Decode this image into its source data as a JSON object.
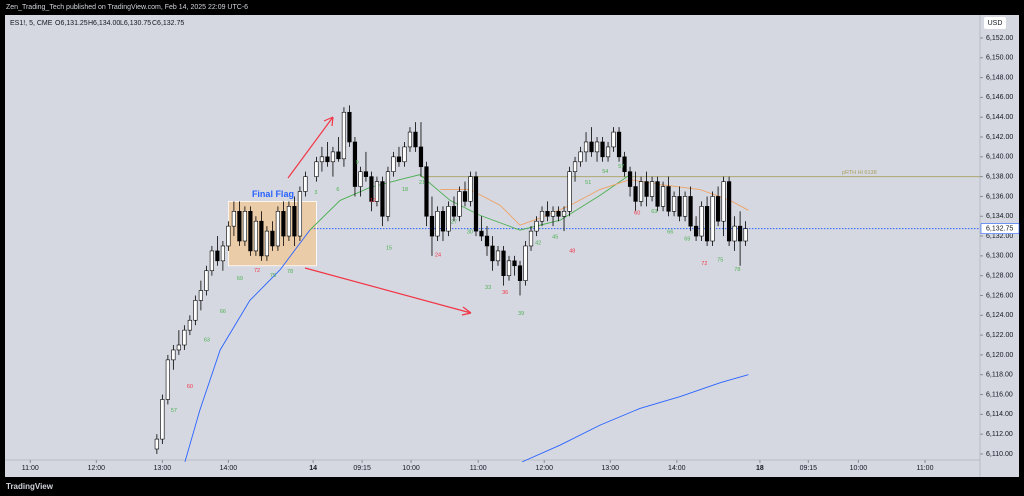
{
  "header": {
    "published": "Zen_Trading_Tech published on TradingView.com, Feb 14, 2025 22:09 UTC-6",
    "brand": "TradingView"
  },
  "chart_data": {
    "type": "candlestick",
    "symbol": "ES1!, 5, CME",
    "quote": [
      "O6,131.25",
      "H6,134.00",
      "L6,130.75",
      "C6,132.75"
    ],
    "currency": "USD",
    "x": [
      0,
      1,
      2,
      3,
      4,
      5,
      6,
      7,
      8,
      9,
      10,
      11,
      12,
      13,
      14,
      15,
      16,
      17,
      18,
      19,
      20,
      21,
      22,
      23,
      24,
      25,
      26,
      27,
      29,
      30,
      31,
      32,
      33,
      34,
      35,
      36,
      37,
      38,
      39,
      40,
      41,
      42,
      43,
      44,
      45,
      46,
      47,
      48,
      49,
      50,
      51,
      52,
      53,
      54,
      55,
      56,
      57,
      58,
      59,
      60,
      61,
      62,
      63,
      64,
      65,
      66,
      67,
      68,
      69,
      70,
      71,
      72,
      73,
      74,
      75,
      76,
      77,
      78,
      79,
      80,
      81,
      82,
      83,
      84,
      85,
      86,
      87,
      88,
      89,
      90,
      91,
      92,
      93,
      94,
      95,
      96,
      97,
      98,
      99,
      100,
      101,
      102,
      103,
      104,
      105,
      106,
      107
    ],
    "open": [
      6110.5,
      6111.5,
      6115.5,
      6119.5,
      6120.5,
      6121,
      6122.5,
      6123.5,
      6125.5,
      6126.5,
      6128.5,
      6130.5,
      6129.5,
      6131,
      6133,
      6134.5,
      6131.5,
      6134.5,
      6130.5,
      6133.5,
      6130,
      6132.5,
      6131,
      6134.5,
      6132,
      6135,
      6132,
      6136.5,
      6138,
      6139.5,
      6140,
      6139.5,
      6140.5,
      6139.8,
      6144.5,
      6141.5,
      6137,
      6138.5,
      6138,
      6135.5,
      6137.5,
      6134,
      6138.5,
      6140,
      6139.5,
      6141,
      6142.5,
      6141,
      6139,
      6134,
      6132,
      6134.5,
      6132.5,
      6135,
      6134,
      6136.5,
      6135.5,
      6138,
      6132.5,
      6132,
      6131,
      6129.5,
      6130.5,
      6128,
      6129.5,
      6129,
      6127.5,
      6131,
      6132.5,
      6133.5,
      6134.5,
      6134,
      6134.5,
      6134,
      6134.5,
      6138.5,
      6139.5,
      6140.5,
      6141.5,
      6140.5,
      6141.5,
      6140,
      6141,
      6142.5,
      6140,
      6138.5,
      6137,
      6135.5,
      6137.5,
      6136,
      6137.5,
      6135,
      6137,
      6134.5,
      6136,
      6134,
      6136,
      6133,
      6132,
      6135,
      6131.5,
      6136,
      6133.5,
      6137.5,
      6131.5,
      6133,
      6131.5
    ],
    "high": [
      6112,
      6116,
      6120,
      6121,
      6122.5,
      6123,
      6124,
      6126,
      6127.5,
      6129,
      6131,
      6132,
      6131.5,
      6133.5,
      6135.5,
      6135.5,
      6135,
      6135,
      6134,
      6134.5,
      6133,
      6133.5,
      6135,
      6135.5,
      6135.5,
      6136,
      6137,
      6138.5,
      6140,
      6141,
      6141.5,
      6141,
      6142,
      6145,
      6145.2,
      6142,
      6139,
      6140.5,
      6138.5,
      6138,
      6138,
      6139,
      6140.5,
      6141,
      6141.5,
      6143,
      6143.5,
      6143.5,
      6139.5,
      6136,
      6135,
      6135,
      6135.5,
      6136,
      6137,
      6137.5,
      6138.5,
      6138.5,
      6134,
      6133,
      6132,
      6131,
      6131,
      6130,
      6130,
      6129.5,
      6131.5,
      6133,
      6134,
      6135,
      6135.5,
      6135,
      6135,
      6135,
      6139,
      6140,
      6141,
      6142.5,
      6143,
      6142,
      6142,
      6141.5,
      6143,
      6143,
      6140.5,
      6139,
      6138.5,
      6138,
      6138.5,
      6138,
      6138,
      6137.5,
      6138,
      6136.5,
      6137,
      6136.5,
      6137,
      6134,
      6135.5,
      6136,
      6136.5,
      6137,
      6138,
      6138,
      6134,
      6134.5,
      6133.5
    ],
    "low": [
      6110,
      6111,
      6115,
      6118.5,
      6120,
      6120.5,
      6122,
      6123,
      6124.5,
      6126,
      6128,
      6129,
      6128.5,
      6130.5,
      6132,
      6131,
      6131,
      6130,
      6130,
      6129.5,
      6129.5,
      6130.5,
      6130.5,
      6131,
      6131.5,
      6131,
      6131.5,
      6136,
      6137.5,
      6138.5,
      6139,
      6138,
      6139.5,
      6139,
      6141,
      6136,
      6136,
      6137.5,
      6134.5,
      6135,
      6133,
      6133.5,
      6138,
      6139,
      6139,
      6140.5,
      6140.5,
      6138,
      6133,
      6130,
      6131.5,
      6131.5,
      6132,
      6133.5,
      6133.5,
      6135,
      6135,
      6132,
      6131.5,
      6130,
      6128.5,
      6129,
      6127,
      6127.5,
      6128,
      6126,
      6127,
      6130.5,
      6132,
      6133,
      6133.5,
      6133,
      6133.5,
      6132.5,
      6134,
      6137.5,
      6139,
      6139.5,
      6140,
      6139.5,
      6139.5,
      6139.5,
      6140.5,
      6139.5,
      6138,
      6136,
      6134.5,
      6135,
      6135,
      6135.5,
      6134.5,
      6134.5,
      6134,
      6134,
      6133.5,
      6133.5,
      6132.5,
      6131.5,
      6131.5,
      6131,
      6131,
      6133,
      6132,
      6131,
      6130.5,
      6129,
      6131
    ],
    "close": [
      6111.5,
      6115.5,
      6119.5,
      6120.5,
      6121,
      6122.5,
      6123.5,
      6125.5,
      6126.5,
      6128.5,
      6130.5,
      6129.5,
      6131,
      6133,
      6134.5,
      6131.5,
      6134.5,
      6130.5,
      6133.5,
      6130,
      6132.5,
      6131,
      6134.5,
      6132,
      6135,
      6132,
      6136.5,
      6138,
      6139.5,
      6140,
      6139.5,
      6140.5,
      6139.8,
      6144.5,
      6141.5,
      6137,
      6138.5,
      6138,
      6135.5,
      6137.5,
      6134,
      6138.5,
      6140,
      6139.5,
      6141,
      6142.5,
      6141,
      6139,
      6134,
      6132,
      6134.5,
      6132.5,
      6135,
      6134,
      6136.5,
      6135.5,
      6138,
      6132.5,
      6132,
      6131,
      6129.5,
      6130.5,
      6128,
      6129.5,
      6129,
      6127.5,
      6131,
      6132.5,
      6133.5,
      6134.5,
      6134,
      6134.5,
      6134,
      6134.5,
      6138.5,
      6139.5,
      6140.5,
      6141.5,
      6140.5,
      6141.5,
      6140,
      6141,
      6142.5,
      6140,
      6138.5,
      6137,
      6135.5,
      6137.5,
      6136,
      6137.5,
      6135,
      6137,
      6134.5,
      6136,
      6134,
      6136,
      6133,
      6132,
      6135,
      6131.5,
      6136,
      6133.5,
      6137.5,
      6131.5,
      6133,
      6131.5,
      6132.75
    ],
    "up_color": "#ffffff",
    "down_color": "#000000",
    "overlays": [
      {
        "color": "#2962ff",
        "x": [
          5.1,
          7.8,
          11.5,
          16.9,
          22.4,
          27.8
        ],
        "values": [
          6109.2,
          6114.4,
          6120.5,
          6125.5,
          6128.6,
          6132.6
        ]
      },
      {
        "color": "#4caf50",
        "x": [
          27.8,
          33.3,
          38.7,
          44.2,
          47.8,
          53.3,
          58.7,
          66,
          73.3,
          80.5,
          86
        ],
        "values": [
          6132.6,
          6135.6,
          6136.9,
          6137.7,
          6138.2,
          6135.6,
          6134.1,
          6132.6,
          6133.6,
          6136.1,
          6138.2
        ]
      },
      {
        "color": "#f0a060",
        "x": [
          51.5,
          56.9,
          62.4,
          66,
          69.6,
          75.1,
          80.5,
          86,
          91.5,
          98.7,
          104.2,
          107.5
        ],
        "values": [
          6136.7,
          6136.7,
          6135.1,
          6133.1,
          6133.8,
          6135.1,
          6136.7,
          6137.7,
          6137.2,
          6136.7,
          6135.6,
          6134.6
        ]
      },
      {
        "color": "#2962ff",
        "x": [
          66.4,
          73.3,
          80.5,
          87.8,
          95.1,
          102.4,
          107.5
        ],
        "values": [
          6109.2,
          6110.9,
          6112.9,
          6114.6,
          6115.8,
          6117.2,
          6118
        ]
      }
    ],
    "levels": [
      {
        "value": 6138,
        "start": 48,
        "color": "#a8a060",
        "label": "pRTH Hi 6138",
        "label_x": 124.5
      },
      {
        "value": 6132.75,
        "start": 28,
        "color": "#2962ff",
        "dashed": true,
        "label": "6,132.75"
      }
    ],
    "box": {
      "x": [
        13,
        29
      ],
      "y": [
        6129,
        6135.5
      ],
      "color": "#f2c896"
    },
    "annotations": [
      {
        "text": "Final Flag",
        "x": 21.1,
        "y": 6136.2,
        "color": "#2962ff",
        "size": 9
      },
      {
        "text": "57",
        "x": 3.1,
        "y": 6114.4,
        "color": "#4caf50"
      },
      {
        "text": "60",
        "x": 6,
        "y": 6116.8,
        "color": "#f23645"
      },
      {
        "text": "63",
        "x": 9.1,
        "y": 6121.5,
        "color": "#4caf50"
      },
      {
        "text": "66",
        "x": 12,
        "y": 6124.4,
        "color": "#4caf50"
      },
      {
        "text": "69",
        "x": 15.1,
        "y": 6127.7,
        "color": "#4caf50"
      },
      {
        "text": "72",
        "x": 18.2,
        "y": 6128.5,
        "color": "#f23645"
      },
      {
        "text": "75",
        "x": 21.1,
        "y": 6128,
        "color": "#4caf50"
      },
      {
        "text": "78",
        "x": 24.2,
        "y": 6128.4,
        "color": "#4caf50"
      },
      {
        "text": "3",
        "x": 28.9,
        "y": 6136.4,
        "color": "#4caf50"
      },
      {
        "text": "6",
        "x": 32.9,
        "y": 6136.7,
        "color": "#4caf50"
      },
      {
        "text": "9",
        "x": 36.4,
        "y": 6139.4,
        "color": "#4caf50"
      },
      {
        "text": "12",
        "x": 39.3,
        "y": 6135.6,
        "color": "#f23645"
      },
      {
        "text": "15",
        "x": 42.2,
        "y": 6130.8,
        "color": "#4caf50"
      },
      {
        "text": "18",
        "x": 45.1,
        "y": 6136.7,
        "color": "#4caf50"
      },
      {
        "text": "21",
        "x": 48.2,
        "y": 6137.4,
        "color": "#4caf50"
      },
      {
        "text": "24",
        "x": 51.1,
        "y": 6130.1,
        "color": "#f23645"
      },
      {
        "text": "27",
        "x": 54,
        "y": 6133.4,
        "color": "#4caf50"
      },
      {
        "text": "30",
        "x": 56.9,
        "y": 6132.4,
        "color": "#4caf50"
      },
      {
        "text": "33",
        "x": 60.2,
        "y": 6126.8,
        "color": "#4caf50"
      },
      {
        "text": "36",
        "x": 63.3,
        "y": 6126.3,
        "color": "#f23645"
      },
      {
        "text": "39",
        "x": 66.2,
        "y": 6124.2,
        "color": "#4caf50"
      },
      {
        "text": "42",
        "x": 69.3,
        "y": 6131.3,
        "color": "#4caf50"
      },
      {
        "text": "45",
        "x": 72.4,
        "y": 6131.9,
        "color": "#4caf50"
      },
      {
        "text": "48",
        "x": 75.5,
        "y": 6130.5,
        "color": "#f23645"
      },
      {
        "text": "51",
        "x": 78.4,
        "y": 6137.4,
        "color": "#4caf50"
      },
      {
        "text": "54",
        "x": 81.5,
        "y": 6138.5,
        "color": "#4caf50"
      },
      {
        "text": "57",
        "x": 84.4,
        "y": 6139,
        "color": "#4caf50"
      },
      {
        "text": "60",
        "x": 87.3,
        "y": 6134.3,
        "color": "#f23645"
      },
      {
        "text": "63",
        "x": 90.4,
        "y": 6134.5,
        "color": "#4caf50"
      },
      {
        "text": "66",
        "x": 93.3,
        "y": 6132.4,
        "color": "#4caf50"
      },
      {
        "text": "69",
        "x": 96.4,
        "y": 6131.7,
        "color": "#4caf50"
      },
      {
        "text": "72",
        "x": 99.5,
        "y": 6129.2,
        "color": "#f23645"
      },
      {
        "text": "75",
        "x": 102.4,
        "y": 6129.6,
        "color": "#4caf50"
      },
      {
        "text": "78",
        "x": 105.5,
        "y": 6128.6,
        "color": "#4caf50"
      }
    ],
    "xlim": [
      -27.6,
      149.6
    ],
    "xticks": [
      {
        "value": -23,
        "label": "11:00"
      },
      {
        "value": -11,
        "label": "12:00"
      },
      {
        "value": 1,
        "label": "13:00"
      },
      {
        "value": 13,
        "label": "14:00"
      },
      {
        "value": 28.4,
        "label": "14"
      },
      {
        "value": 37.3,
        "label": "09:15"
      },
      {
        "value": 46.2,
        "label": "10:00"
      },
      {
        "value": 58.4,
        "label": "11:00"
      },
      {
        "value": 70.4,
        "label": "12:00"
      },
      {
        "value": 82.4,
        "label": "13:00"
      },
      {
        "value": 94.5,
        "label": "14:00"
      },
      {
        "value": 109.6,
        "label": "18"
      },
      {
        "value": 118.4,
        "label": "09:15"
      },
      {
        "value": 127.5,
        "label": "10:00"
      },
      {
        "value": 139.6,
        "label": "11:00"
      }
    ],
    "ylim": [
      6109.39,
      6154.32
    ],
    "yticks": [
      {
        "value": 6110,
        "label": "6,110.00"
      },
      {
        "value": 6112,
        "label": "6,112.00"
      },
      {
        "value": 6114,
        "label": "6,114.00"
      },
      {
        "value": 6116,
        "label": "6,116.00"
      },
      {
        "value": 6118,
        "label": "6,118.00"
      },
      {
        "value": 6120,
        "label": "6,120.00"
      },
      {
        "value": 6122,
        "label": "6,122.00"
      },
      {
        "value": 6124,
        "label": "6,124.00"
      },
      {
        "value": 6126,
        "label": "6,126.00"
      },
      {
        "value": 6128,
        "label": "6,128.00"
      },
      {
        "value": 6130,
        "label": "6,130.00"
      },
      {
        "value": 6132,
        "label": "6,132.00"
      },
      {
        "value": 6134,
        "label": "6,134.00"
      },
      {
        "value": 6136,
        "label": "6,136.00"
      },
      {
        "value": 6138,
        "label": "6,138.00"
      },
      {
        "value": 6140,
        "label": "6,140.00"
      },
      {
        "value": 6142,
        "label": "6,142.00"
      },
      {
        "value": 6144,
        "label": "6,144.00"
      },
      {
        "value": 6146,
        "label": "6,146.00"
      },
      {
        "value": 6148,
        "label": "6,148.00"
      },
      {
        "value": 6150,
        "label": "6,150.00"
      },
      {
        "value": 6152,
        "label": "6,152.00"
      }
    ],
    "grid": false
  }
}
